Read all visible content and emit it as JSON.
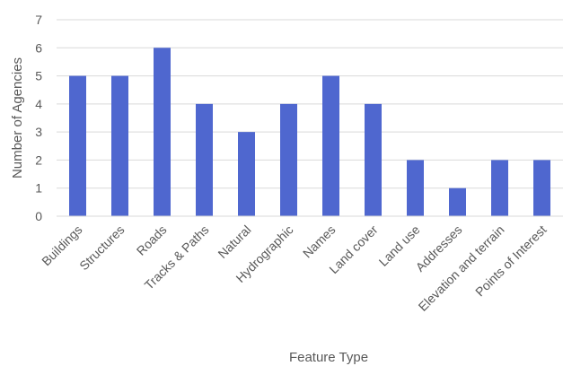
{
  "chart_data": {
    "type": "bar",
    "title": "",
    "xlabel": "Feature Type",
    "ylabel": "Number of Agencies",
    "ylim": [
      0,
      7
    ],
    "yticks": [
      0,
      1,
      2,
      3,
      4,
      5,
      6,
      7
    ],
    "grid": true,
    "legend": "none",
    "bar_color": "#4f67cf",
    "categories": [
      "Buildings",
      "Structures",
      "Roads",
      "Tracks & Paths",
      "Natural",
      "Hydrographic",
      "Names",
      "Land cover",
      "Land use",
      "Addresses",
      "Elevation and terrain",
      "Points of Interest"
    ],
    "values": [
      5,
      5,
      6,
      4,
      3,
      4,
      5,
      4,
      2,
      1,
      2,
      2
    ]
  }
}
